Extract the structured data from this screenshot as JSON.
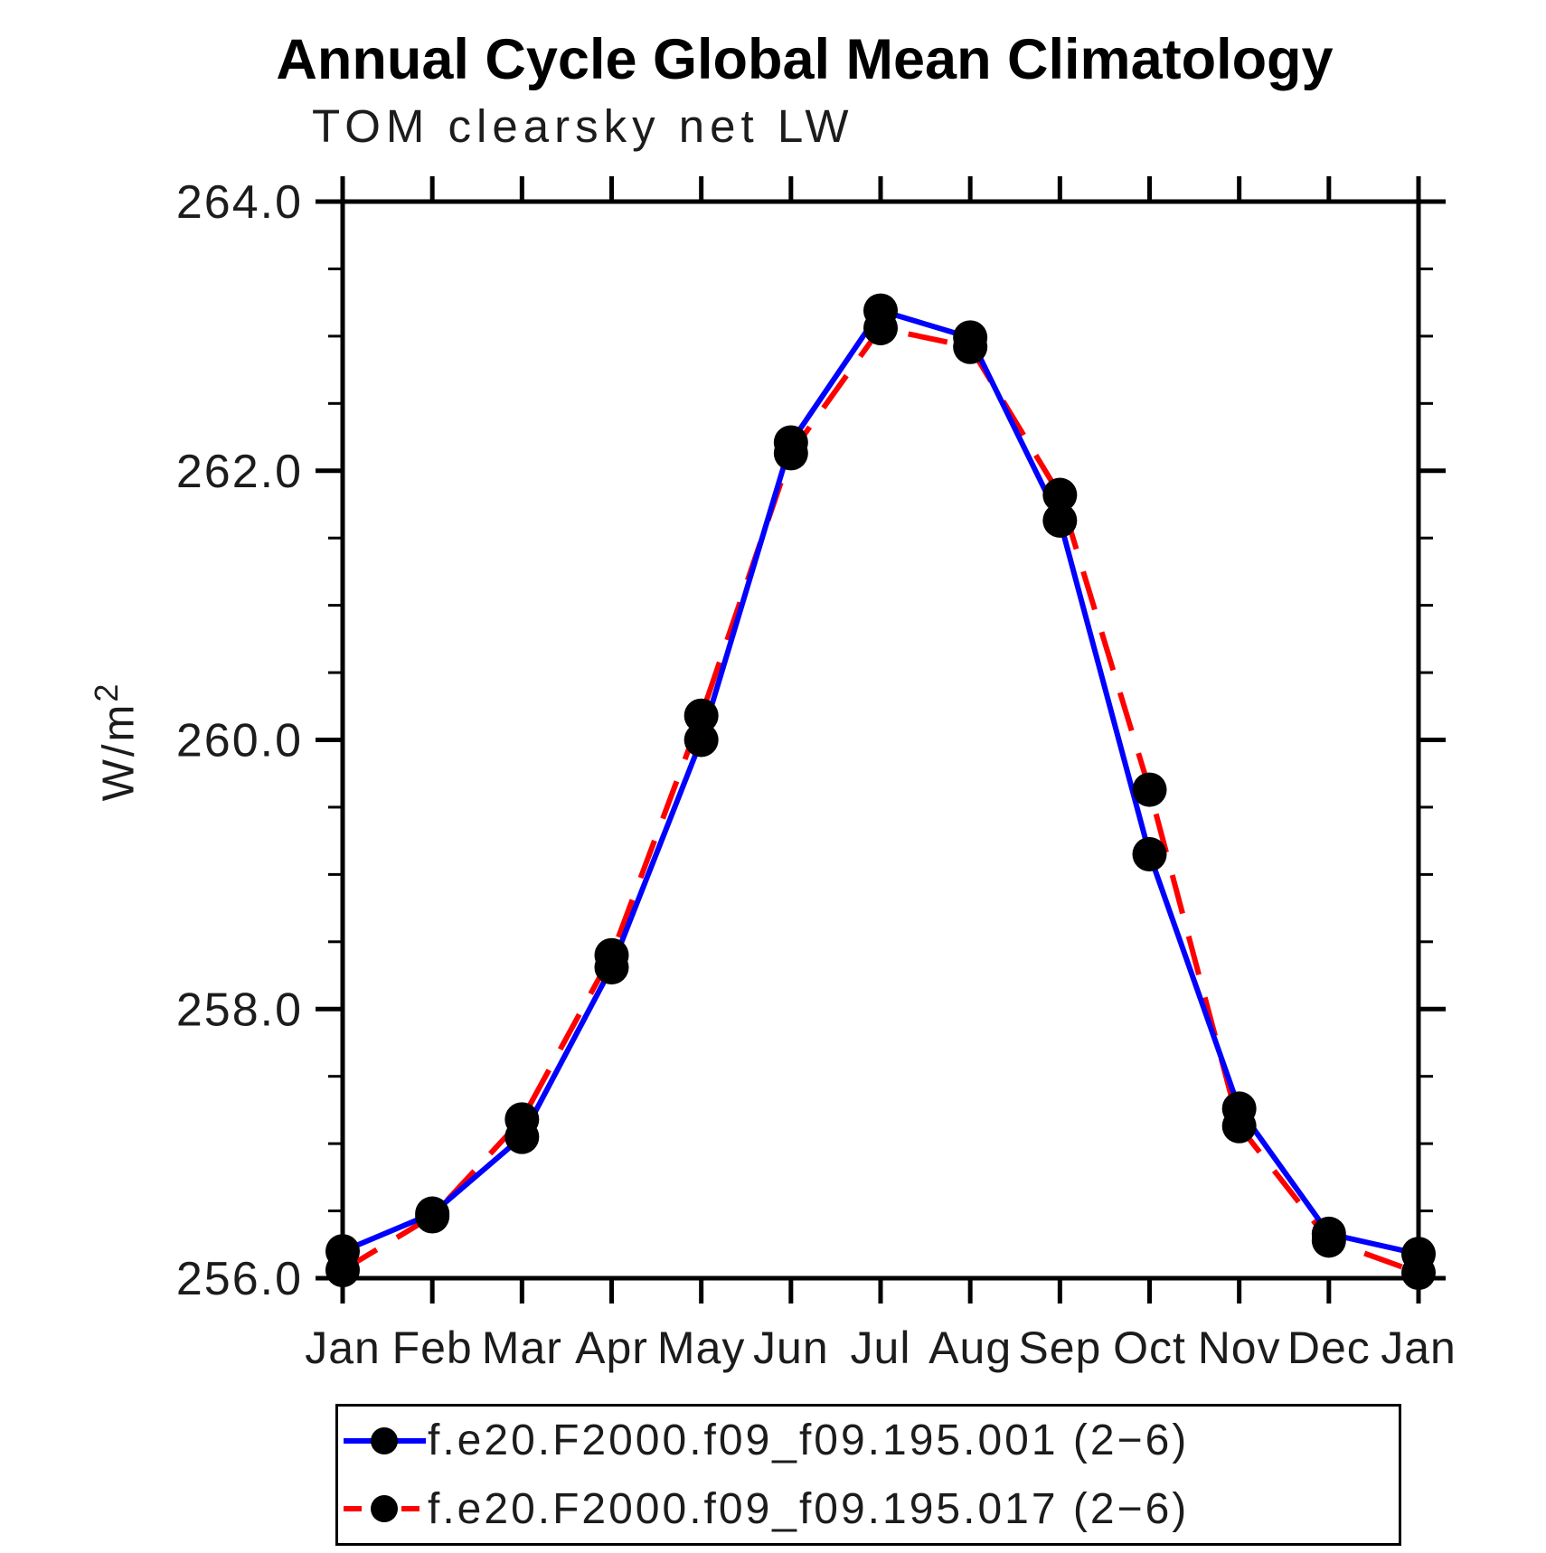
{
  "page": {
    "background": "#ffffff"
  },
  "header": {
    "title": "Annual Cycle Global Mean Climatology",
    "subtitle": "TOM clearsky net LW"
  },
  "y_axis": {
    "unit_base": "W/m",
    "unit_exponent": "2",
    "tick_labels": [
      "256.0",
      "258.0",
      "260.0",
      "262.0",
      "264.0"
    ]
  },
  "chart_data": {
    "type": "line",
    "title": "Annual Cycle Global Mean Climatology",
    "subtitle": "TOM clearsky net LW",
    "xlabel": "",
    "ylabel": "W/m^2",
    "categories": [
      "Jan",
      "Feb",
      "Mar",
      "Apr",
      "May",
      "Jun",
      "Jul",
      "Aug",
      "Sep",
      "Oct",
      "Nov",
      "Dec",
      "Jan"
    ],
    "ylim": [
      256.0,
      264.0
    ],
    "yticks_major": [
      256.0,
      258.0,
      260.0,
      262.0,
      264.0
    ],
    "ytick_minor_step": 0.5,
    "grid": false,
    "legend_position": "bottom",
    "axis_color": "#000000",
    "marker_color": "#000000",
    "series": [
      {
        "name": "f.e20.F2000.f09_f09.195.001 (2−6)",
        "color": "#0000ff",
        "style": "solid",
        "values": [
          256.2,
          256.48,
          257.05,
          258.31,
          260.0,
          262.21,
          263.19,
          262.99,
          261.63,
          259.15,
          257.26,
          256.33,
          256.18
        ]
      },
      {
        "name": "f.e20.F2000.f09_f09.195.017 (2−6)",
        "color": "#ff0000",
        "style": "dashed",
        "values": [
          256.06,
          256.46,
          257.18,
          258.4,
          260.18,
          262.13,
          263.06,
          262.92,
          261.82,
          259.63,
          257.13,
          256.28,
          256.04
        ]
      }
    ]
  }
}
